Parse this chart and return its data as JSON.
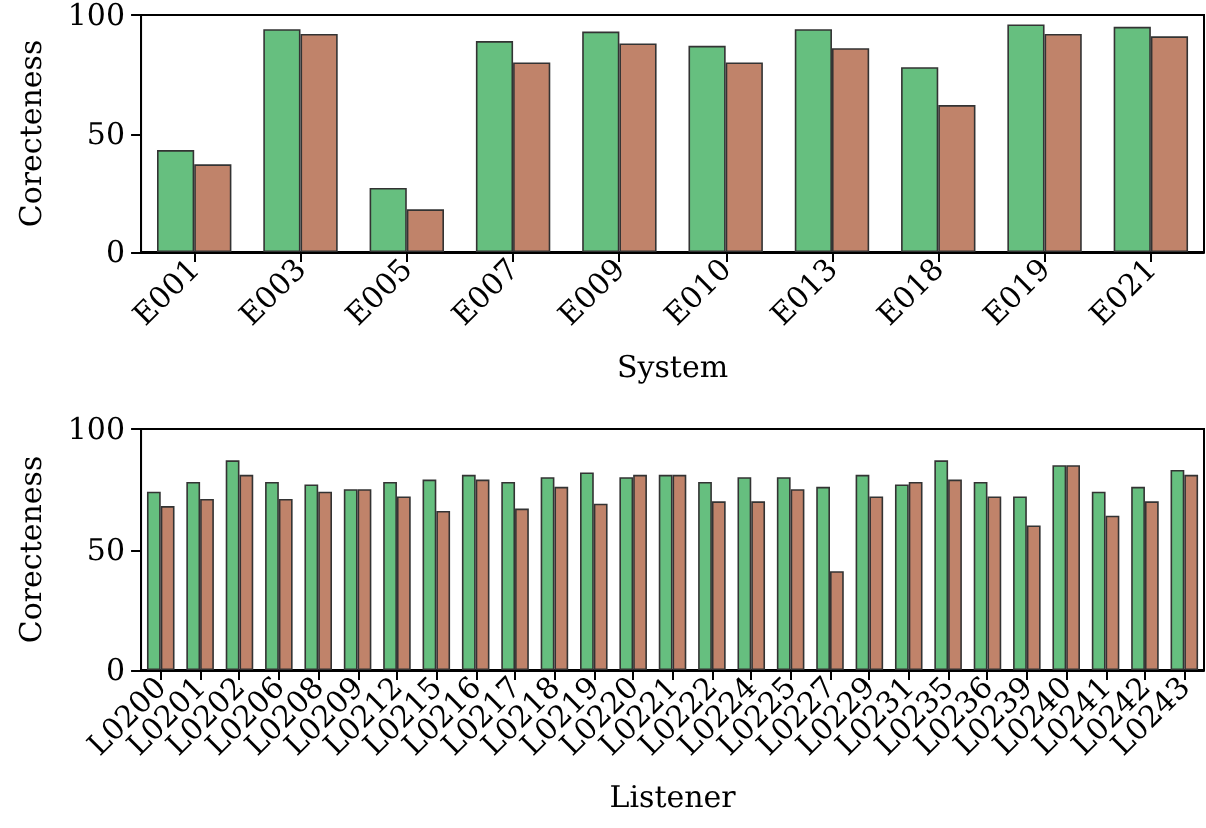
{
  "chart_data": [
    {
      "type": "bar",
      "xlabel": "System",
      "ylabel": "Corecteness",
      "categories": [
        "E001",
        "E003",
        "E005",
        "E007",
        "E009",
        "E010",
        "E013",
        "E018",
        "E019",
        "E021"
      ],
      "ylim": [
        0,
        100
      ],
      "yticks": [
        0,
        50,
        100
      ],
      "series": [
        {
          "color": "#66bf7f",
          "values": [
            43,
            94,
            27,
            89,
            93,
            87,
            94,
            78,
            96,
            95
          ]
        },
        {
          "color": "#c0836a",
          "values": [
            37,
            92,
            18,
            80,
            88,
            80,
            86,
            62,
            92,
            91
          ]
        }
      ]
    },
    {
      "type": "bar",
      "xlabel": "Listener",
      "ylabel": "Corecteness",
      "categories": [
        "L0200",
        "L0201",
        "L0202",
        "L0206",
        "L0208",
        "L0209",
        "L0212",
        "L0215",
        "L0216",
        "L0217",
        "L0218",
        "L0219",
        "L0220",
        "L0221",
        "L0222",
        "L0224",
        "L0225",
        "L0227",
        "L0229",
        "L0231",
        "L0235",
        "L0236",
        "L0239",
        "L0240",
        "L0241",
        "L0242",
        "L0243"
      ],
      "ylim": [
        0,
        100
      ],
      "yticks": [
        0,
        50,
        100
      ],
      "series": [
        {
          "color": "#66bf7f",
          "values": [
            74,
            78,
            87,
            78,
            77,
            75,
            78,
            79,
            81,
            78,
            80,
            82,
            80,
            81,
            78,
            80,
            80,
            76,
            81,
            77,
            87,
            78,
            72,
            85,
            74,
            76,
            83
          ]
        },
        {
          "color": "#c0836a",
          "values": [
            68,
            71,
            81,
            71,
            74,
            75,
            72,
            66,
            79,
            67,
            76,
            69,
            81,
            81,
            70,
            70,
            75,
            41,
            72,
            78,
            79,
            72,
            60,
            85,
            64,
            70,
            81
          ]
        }
      ]
    }
  ]
}
